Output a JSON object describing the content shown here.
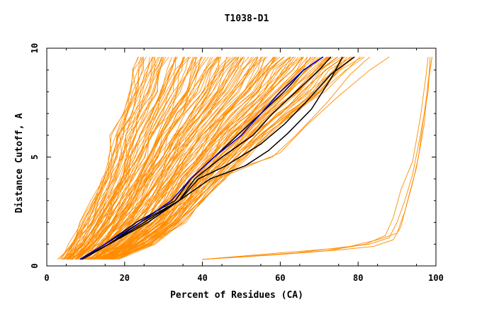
{
  "chart_data": {
    "type": "line",
    "title": "T1038-D1",
    "xlabel": "Percent of Residues (CA)",
    "ylabel": "Distance Cutoff, A",
    "xlim": [
      0,
      100
    ],
    "ylim": [
      0,
      10
    ],
    "x_ticks": [
      "0",
      "20",
      "40",
      "60",
      "80",
      "100"
    ],
    "y_ticks": [
      "0",
      "5",
      "10"
    ],
    "grid": false,
    "legend": "none",
    "colors": {
      "orange": "#ff8c00",
      "black": "#000000",
      "blue": "#0000cc"
    },
    "band": {
      "count": 150,
      "y": [
        0.3,
        1.0,
        2.0,
        3.0,
        4.0,
        5.0,
        6.0,
        7.0,
        8.0,
        9.0,
        9.6
      ],
      "x_left": [
        4,
        6,
        9,
        12,
        14,
        16,
        17,
        19,
        21,
        22,
        23
      ],
      "x_right": [
        18,
        27,
        35,
        40,
        45,
        51,
        57,
        64,
        71,
        77,
        81
      ]
    },
    "series": [
      {
        "color": "black",
        "x": [
          9,
          16,
          24,
          34,
          42,
          51,
          57,
          62,
          68,
          73,
          76
        ],
        "y": [
          0.3,
          1.0,
          2.0,
          3.0,
          4.0,
          4.6,
          5.3,
          6.1,
          7.2,
          8.6,
          9.6
        ]
      },
      {
        "color": "black",
        "x": [
          8.5,
          15,
          23,
          33,
          37,
          43,
          49,
          55,
          61,
          66,
          71
        ],
        "y": [
          0.3,
          1.0,
          2.0,
          3.0,
          4.0,
          5.0,
          6.0,
          7.0,
          8.0,
          9.0,
          9.6
        ]
      },
      {
        "color": "black",
        "x": [
          8.5,
          16,
          25,
          34,
          38,
          45,
          53,
          58,
          64,
          70,
          73
        ],
        "y": [
          0.3,
          1.0,
          2.0,
          3.0,
          4.0,
          5.0,
          6.0,
          7.0,
          8.0,
          9.0,
          9.6
        ]
      },
      {
        "color": "black",
        "x": [
          9,
          16,
          26,
          34,
          39,
          46,
          55,
          61,
          67,
          73,
          79
        ],
        "y": [
          0.3,
          1.0,
          2.0,
          3.0,
          4.0,
          4.6,
          5.6,
          6.5,
          7.6,
          8.8,
          9.6
        ]
      },
      {
        "color": "blue",
        "x": [
          8.5,
          15,
          24,
          32,
          37,
          43,
          50,
          55,
          60,
          66,
          71
        ],
        "y": [
          0.3,
          1.0,
          2.0,
          3.0,
          4.0,
          5.0,
          6.0,
          7.0,
          8.0,
          9.0,
          9.6
        ]
      },
      {
        "color": "orange",
        "x": [
          10,
          20,
          27,
          36,
          43,
          51,
          58,
          64,
          72,
          78,
          83
        ],
        "y": [
          0.3,
          1.0,
          2.0,
          3.0,
          4.0,
          4.6,
          5.0,
          6.0,
          7.5,
          8.8,
          9.6
        ]
      },
      {
        "color": "orange",
        "x": [
          12,
          22,
          30,
          38,
          44,
          52,
          60,
          67,
          75,
          83,
          88
        ],
        "y": [
          0.3,
          1.0,
          2.0,
          3.0,
          4.0,
          4.6,
          5.2,
          6.5,
          7.8,
          9.0,
          9.6
        ]
      },
      {
        "color": "orange",
        "x": [
          40,
          60,
          74,
          83,
          88,
          90,
          92,
          94,
          96,
          98,
          98.5
        ],
        "y": [
          0.3,
          0.6,
          0.8,
          1.0,
          1.3,
          2.0,
          3.0,
          4.2,
          6.0,
          8.0,
          9.6
        ]
      },
      {
        "color": "orange",
        "x": [
          40,
          62,
          76,
          84,
          89,
          91,
          93,
          95,
          97,
          98,
          99
        ],
        "y": [
          0.3,
          0.55,
          0.75,
          0.9,
          1.2,
          1.8,
          3.2,
          4.5,
          6.5,
          8.5,
          9.6
        ]
      },
      {
        "color": "orange",
        "x": [
          40,
          58,
          72,
          82,
          87,
          89,
          91,
          94,
          96,
          97.5,
          98
        ],
        "y": [
          0.3,
          0.5,
          0.7,
          1.0,
          1.4,
          2.2,
          3.5,
          4.8,
          6.8,
          8.8,
          9.6
        ]
      },
      {
        "color": "orange",
        "x": [
          40,
          64,
          78,
          85,
          90,
          92,
          94,
          95.5,
          97,
          98.5,
          99
        ],
        "y": [
          0.3,
          0.6,
          0.9,
          1.2,
          1.5,
          2.5,
          3.8,
          5.0,
          7.0,
          9.0,
          9.6
        ]
      }
    ]
  }
}
